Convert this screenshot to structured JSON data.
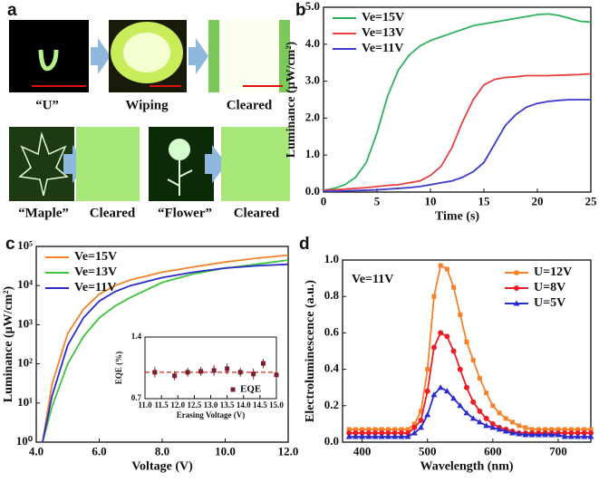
{
  "panel_a": {
    "label": "a",
    "captions": [
      "“U”",
      "Wiping",
      "Cleared",
      "“Maple”",
      "Cleared",
      "“Flower”",
      "Cleared"
    ]
  },
  "chart_data": [
    {
      "panel": "b",
      "type": "line",
      "xlabel": "Time (s)",
      "ylabel": "Luminance (μW/cm²)",
      "x": [
        0,
        1,
        2,
        3,
        4,
        5,
        6,
        7,
        8,
        9,
        10,
        11,
        12,
        13,
        14,
        15,
        16,
        17,
        18,
        19,
        20,
        21,
        22,
        23,
        24,
        25
      ],
      "series": [
        {
          "name": "Ve=15V",
          "color": "#2db35d",
          "values": [
            0.05,
            0.1,
            0.2,
            0.4,
            0.8,
            1.6,
            2.6,
            3.3,
            3.7,
            3.95,
            4.1,
            4.2,
            4.3,
            4.4,
            4.5,
            4.55,
            4.6,
            4.65,
            4.7,
            4.75,
            4.8,
            4.82,
            4.78,
            4.7,
            4.62,
            4.6
          ]
        },
        {
          "name": "Ve=13V",
          "color": "#e84040",
          "values": [
            0.05,
            0.06,
            0.08,
            0.1,
            0.12,
            0.15,
            0.18,
            0.2,
            0.25,
            0.3,
            0.45,
            0.7,
            1.2,
            1.9,
            2.5,
            2.9,
            3.05,
            3.1,
            3.12,
            3.15,
            3.15,
            3.15,
            3.16,
            3.17,
            3.18,
            3.2
          ]
        },
        {
          "name": "Ve=11V",
          "color": "#3a3acb",
          "values": [
            0.02,
            0.02,
            0.03,
            0.04,
            0.05,
            0.06,
            0.08,
            0.1,
            0.12,
            0.15,
            0.2,
            0.25,
            0.3,
            0.4,
            0.55,
            0.8,
            1.3,
            1.8,
            2.1,
            2.3,
            2.4,
            2.45,
            2.48,
            2.5,
            2.5,
            2.5
          ]
        }
      ],
      "xlim": [
        0,
        25
      ],
      "ylim": [
        0,
        5
      ],
      "xticks": [
        0,
        5,
        10,
        15,
        20,
        25
      ],
      "yticks": [
        {
          "value": 0,
          "label": "0.0"
        },
        {
          "value": 1,
          "label": "1.0"
        },
        {
          "value": 2,
          "label": "2.0"
        },
        {
          "value": 3,
          "label": "3.0"
        },
        {
          "value": 4,
          "label": "4.0"
        },
        {
          "value": 5,
          "label": "5.0"
        }
      ],
      "legend": "upper left"
    },
    {
      "panel": "c",
      "type": "line",
      "yscale": "log",
      "xlabel": "Voltage (V)",
      "ylabel": "Luminance (μW/cm²)",
      "x": [
        4.2,
        4.5,
        5,
        5.5,
        6,
        6.5,
        7,
        8,
        9,
        10,
        11,
        12
      ],
      "series": [
        {
          "name": "Ve=15V",
          "color": "#f5822a",
          "values": [
            1,
            30,
            600,
            2500,
            6000,
            10000,
            14000,
            22000,
            30000,
            40000,
            50000,
            60000
          ]
        },
        {
          "name": "Ve=13V",
          "color": "#3cc43c",
          "values": [
            1,
            8,
            100,
            500,
            1500,
            3000,
            5000,
            12000,
            20000,
            28000,
            35000,
            45000
          ]
        },
        {
          "name": "Ve=11V",
          "color": "#2b2bc8",
          "values": [
            1,
            15,
            300,
            1500,
            4000,
            7000,
            10000,
            16000,
            22000,
            28000,
            32000,
            35000
          ]
        }
      ],
      "xlim": [
        4,
        12
      ],
      "ylim": [
        1,
        100000
      ],
      "xticks": [
        {
          "value": 4,
          "label": "4.0"
        },
        {
          "value": 6,
          "label": "6.0"
        },
        {
          "value": 8,
          "label": "8.0"
        },
        {
          "value": 10,
          "label": "10.0"
        },
        {
          "value": 12,
          "label": "12.0"
        }
      ],
      "yticks": [
        {
          "value": 1,
          "label": "10⁰"
        },
        {
          "value": 10,
          "label": "10¹"
        },
        {
          "value": 100,
          "label": "10²"
        },
        {
          "value": 1000,
          "label": "10³"
        },
        {
          "value": 10000,
          "label": "10⁴"
        },
        {
          "value": 100000,
          "label": "10⁵"
        }
      ],
      "legend": "upper left"
    },
    {
      "type": "scatter",
      "inset": true,
      "xlabel": "Erasing Voltage (V)",
      "ylabel": "EQE (%)",
      "x": [
        11.3,
        11.9,
        12.3,
        12.7,
        13.1,
        13.5,
        13.9,
        14.3,
        14.6,
        15.0
      ],
      "series": [
        {
          "name": "EQE",
          "color": "#7a1f2b",
          "values": [
            1.0,
            0.96,
            1.0,
            1.01,
            1.02,
            1.04,
            1.0,
            0.98,
            1.1,
            0.97
          ],
          "errors": [
            0.06,
            0.05,
            0.05,
            0.05,
            0.06,
            0.06,
            0.05,
            0.06,
            0.05,
            0.05
          ]
        }
      ],
      "reference_line": 1.0,
      "reference_color": "#d42020",
      "xlim": [
        11,
        15
      ],
      "ylim": [
        0.7,
        1.4
      ],
      "xticks": [
        {
          "value": 11,
          "label": "11.0"
        },
        11.5,
        {
          "value": 12,
          "label": "12.0"
        },
        12.5,
        {
          "value": 13,
          "label": "13.0"
        },
        13.5,
        {
          "value": 14,
          "label": "14.0"
        },
        14.5,
        {
          "value": 15,
          "label": "15.0"
        }
      ],
      "yticks": [
        0.7,
        1.4
      ],
      "legend": "lower right"
    },
    {
      "panel": "d",
      "type": "line",
      "xlabel": "Wavelength (nm)",
      "ylabel": "Electroluminescence (a.u.)",
      "annotation": "Ve=11V",
      "x": [
        380,
        390,
        400,
        410,
        420,
        430,
        440,
        450,
        460,
        470,
        480,
        490,
        500,
        510,
        520,
        530,
        540,
        550,
        560,
        570,
        580,
        590,
        600,
        610,
        620,
        630,
        640,
        650,
        660,
        670,
        680,
        690,
        700,
        710,
        720,
        730,
        740,
        750
      ],
      "series": [
        {
          "name": "U=12V",
          "color": "#f5822a",
          "marker": "square",
          "values": [
            0.07,
            0.07,
            0.07,
            0.07,
            0.07,
            0.07,
            0.07,
            0.07,
            0.07,
            0.07,
            0.1,
            0.17,
            0.4,
            0.8,
            0.97,
            0.95,
            0.85,
            0.7,
            0.55,
            0.45,
            0.35,
            0.27,
            0.2,
            0.16,
            0.13,
            0.11,
            0.09,
            0.08,
            0.07,
            0.07,
            0.07,
            0.07,
            0.07,
            0.07,
            0.07,
            0.07,
            0.07,
            0.07
          ]
        },
        {
          "name": "U=8V",
          "color": "#ee1c24",
          "marker": "circle",
          "values": [
            0.05,
            0.05,
            0.05,
            0.05,
            0.05,
            0.05,
            0.05,
            0.05,
            0.05,
            0.05,
            0.08,
            0.12,
            0.28,
            0.52,
            0.6,
            0.58,
            0.5,
            0.4,
            0.3,
            0.22,
            0.17,
            0.13,
            0.1,
            0.08,
            0.07,
            0.06,
            0.05,
            0.05,
            0.05,
            0.05,
            0.05,
            0.05,
            0.05,
            0.05,
            0.05,
            0.05,
            0.05,
            0.05
          ]
        },
        {
          "name": "U=5V",
          "color": "#2a2ad0",
          "marker": "triangle",
          "values": [
            0.03,
            0.03,
            0.03,
            0.03,
            0.03,
            0.03,
            0.03,
            0.03,
            0.03,
            0.03,
            0.05,
            0.08,
            0.15,
            0.26,
            0.3,
            0.28,
            0.24,
            0.2,
            0.16,
            0.13,
            0.11,
            0.09,
            0.08,
            0.07,
            0.06,
            0.05,
            0.045,
            0.04,
            0.04,
            0.04,
            0.04,
            0.04,
            0.04,
            0.03,
            0.03,
            0.03,
            0.03,
            0.03
          ]
        }
      ],
      "xlim": [
        370,
        750
      ],
      "ylim": [
        0,
        1
      ],
      "xticks": [
        400,
        500,
        600,
        700
      ],
      "yticks": [
        {
          "value": 0,
          "label": "0.0"
        },
        0.2,
        0.4,
        0.6,
        0.8,
        {
          "value": 1,
          "label": "1.0"
        }
      ],
      "legend": "upper right"
    }
  ]
}
